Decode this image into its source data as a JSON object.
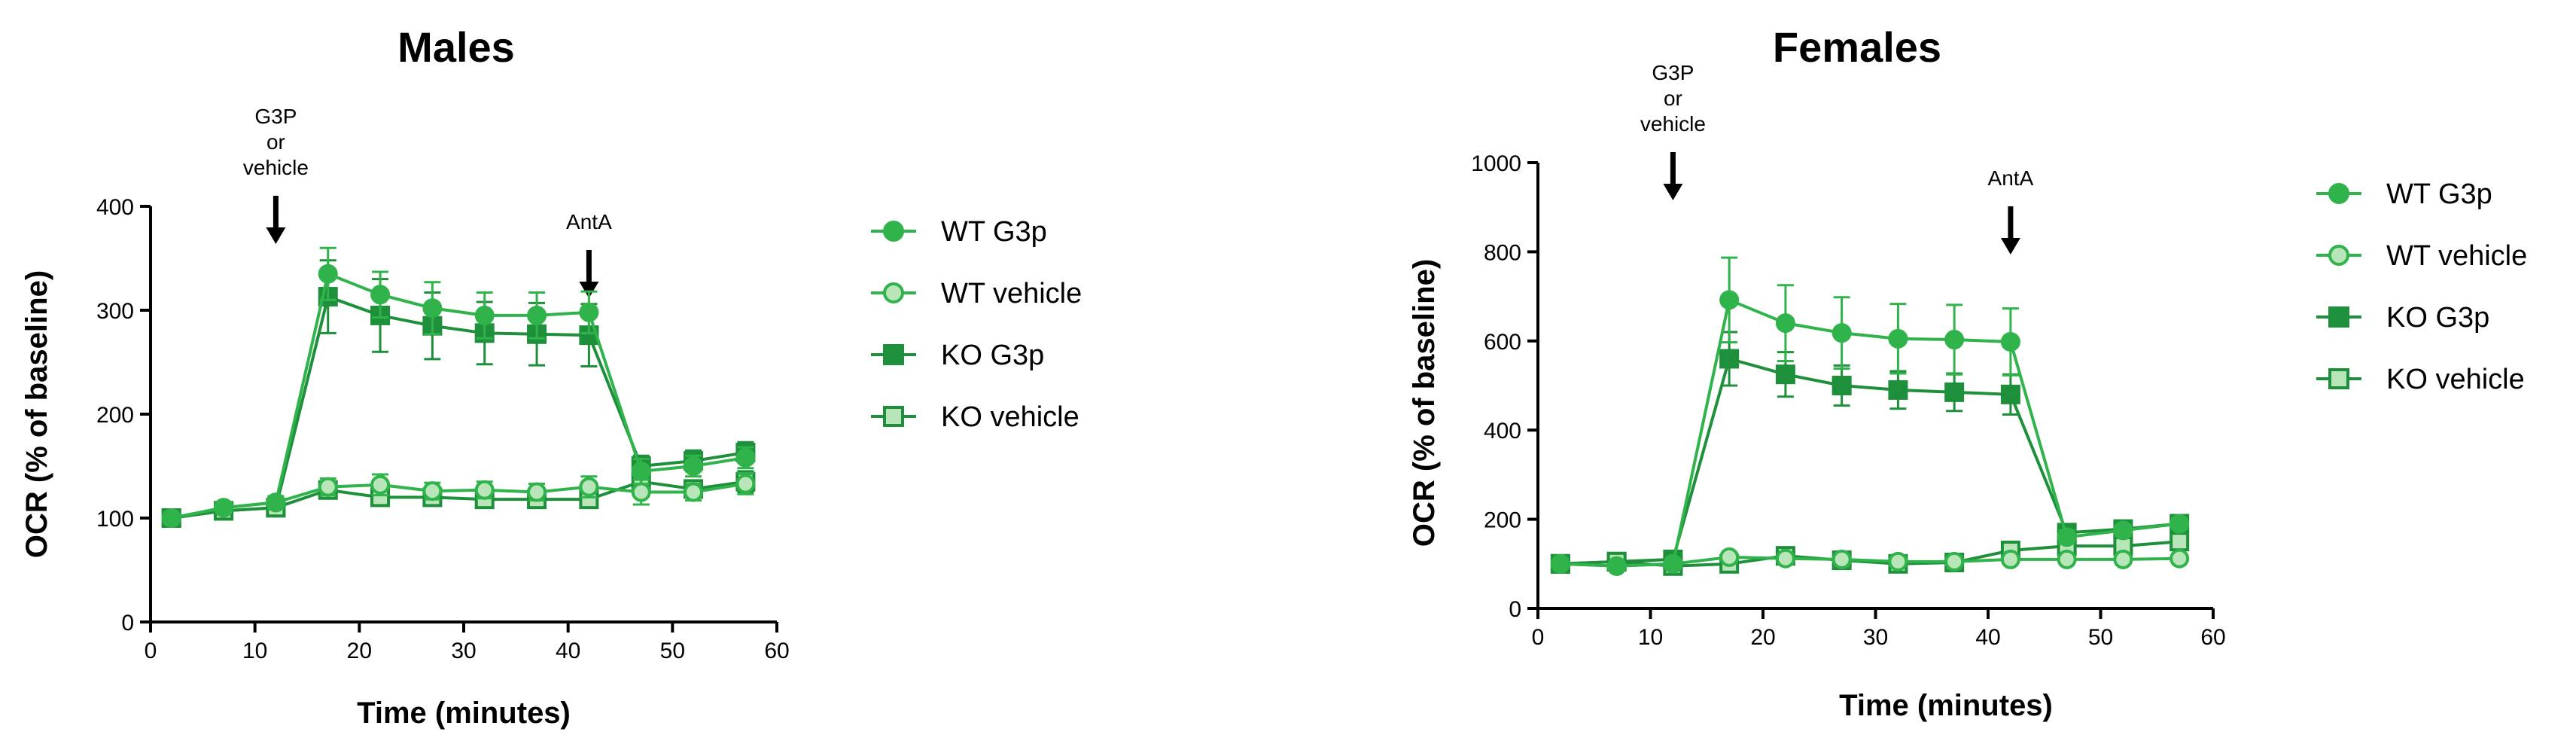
{
  "colors": {
    "wt": "#2fb34a",
    "wt_light_fill": "#b9e6b9",
    "ko": "#1e8f3a",
    "axis": "#000000"
  },
  "chart_data": [
    {
      "type": "line",
      "title": "Males",
      "xlabel": "Time (minutes)",
      "ylabel": "OCR (% of baseline)",
      "xlim": [
        0,
        60
      ],
      "ylim": [
        0,
        400
      ],
      "xticks": [
        0,
        10,
        20,
        30,
        40,
        50,
        60
      ],
      "yticks": [
        0,
        100,
        200,
        300,
        400
      ],
      "x": [
        2,
        7,
        12,
        17,
        22,
        27,
        32,
        37,
        42,
        47,
        52,
        57
      ],
      "annotations": [
        {
          "lines": [
            "G3P",
            "or",
            "vehicle"
          ],
          "x": 12
        },
        {
          "lines": [
            "AntA"
          ],
          "x": 42
        }
      ],
      "legend_position": "right",
      "series": [
        {
          "name": "WT G3p",
          "marker": "circle",
          "filled": true,
          "values": [
            100,
            110,
            115,
            335,
            315,
            302,
            295,
            295,
            298,
            145,
            150,
            158
          ],
          "errors": [
            0,
            5,
            6,
            25,
            22,
            25,
            22,
            22,
            20,
            12,
            10,
            10
          ]
        },
        {
          "name": "WT vehicle",
          "marker": "circle",
          "filled": false,
          "values": [
            100,
            110,
            115,
            130,
            132,
            126,
            127,
            125,
            130,
            125,
            125,
            133
          ],
          "errors": [
            0,
            5,
            6,
            8,
            10,
            8,
            8,
            8,
            10,
            12,
            8,
            10
          ]
        },
        {
          "name": "KO G3p",
          "marker": "square",
          "filled": true,
          "values": [
            100,
            107,
            110,
            313,
            295,
            285,
            278,
            277,
            276,
            150,
            155,
            163
          ],
          "errors": [
            0,
            5,
            6,
            35,
            35,
            32,
            30,
            30,
            30,
            10,
            10,
            10
          ]
        },
        {
          "name": "KO vehicle",
          "marker": "square",
          "filled": false,
          "values": [
            100,
            107,
            110,
            127,
            120,
            120,
            118,
            118,
            118,
            135,
            128,
            135
          ],
          "errors": [
            0,
            5,
            6,
            6,
            8,
            8,
            8,
            8,
            8,
            10,
            8,
            10
          ]
        }
      ]
    },
    {
      "type": "line",
      "title": "Females",
      "xlabel": "Time (minutes)",
      "ylabel": "OCR (% of baseline)",
      "xlim": [
        0,
        60
      ],
      "ylim": [
        0,
        1000
      ],
      "xticks": [
        0,
        10,
        20,
        30,
        40,
        50,
        60
      ],
      "yticks": [
        0,
        200,
        400,
        600,
        800,
        1000
      ],
      "x": [
        2,
        7,
        12,
        17,
        22,
        27,
        32,
        37,
        42,
        47,
        52,
        57
      ],
      "annotations": [
        {
          "lines": [
            "G3P",
            "or",
            "vehicle"
          ],
          "x": 12
        },
        {
          "lines": [
            "AntA"
          ],
          "x": 42
        }
      ],
      "legend_position": "right",
      "series": [
        {
          "name": "WT G3p",
          "marker": "circle",
          "filled": true,
          "values": [
            100,
            95,
            100,
            692,
            640,
            618,
            605,
            603,
            598,
            160,
            175,
            190
          ],
          "errors": [
            0,
            5,
            8,
            95,
            85,
            80,
            78,
            78,
            75,
            15,
            12,
            12
          ]
        },
        {
          "name": "WT vehicle",
          "marker": "circle",
          "filled": false,
          "values": [
            100,
            95,
            100,
            115,
            112,
            110,
            105,
            105,
            110,
            110,
            110,
            112
          ],
          "errors": [
            0,
            5,
            8,
            10,
            10,
            10,
            10,
            10,
            10,
            8,
            8,
            8
          ]
        },
        {
          "name": "KO G3p",
          "marker": "square",
          "filled": true,
          "values": [
            100,
            105,
            110,
            560,
            525,
            500,
            490,
            485,
            480,
            170,
            178,
            190
          ],
          "errors": [
            0,
            5,
            8,
            60,
            50,
            45,
            42,
            42,
            45,
            12,
            12,
            12
          ]
        },
        {
          "name": "KO vehicle",
          "marker": "square",
          "filled": false,
          "values": [
            100,
            105,
            95,
            100,
            118,
            108,
            100,
            103,
            130,
            140,
            140,
            150
          ],
          "errors": [
            0,
            5,
            8,
            8,
            10,
            8,
            8,
            8,
            10,
            10,
            10,
            10
          ]
        }
      ]
    }
  ]
}
